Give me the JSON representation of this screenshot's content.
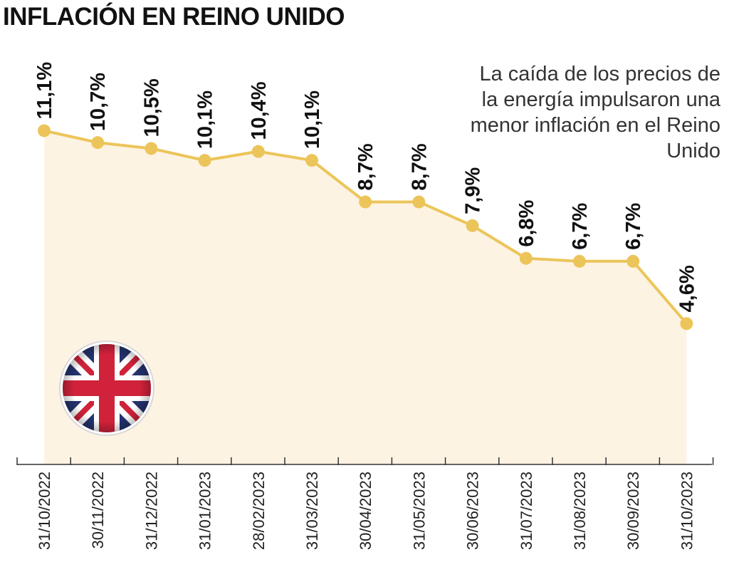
{
  "title": "INFLACIÓN EN REINO UNIDO",
  "annotation": "La caída de los precios de la energía impulsaron una menor inflación en el Reino Unido",
  "colors": {
    "line": "#ecc55a",
    "area": "#fdf3e3",
    "axis": "#333333"
  },
  "flag_icon": "united-kingdom-flag-icon",
  "chart_data": {
    "type": "area",
    "title": "INFLACIÓN EN REINO UNIDO",
    "xlabel": "",
    "ylabel": "",
    "categories": [
      "31/10/2022",
      "30/11/2022",
      "31/12/2022",
      "31/01/2023",
      "28/02/2023",
      "31/03/2023",
      "30/04/2023",
      "31/05/2023",
      "30/06/2023",
      "31/07/2023",
      "31/08/2023",
      "30/09/2023",
      "31/10/2023"
    ],
    "values": [
      11.1,
      10.7,
      10.5,
      10.1,
      10.4,
      10.1,
      8.7,
      8.7,
      7.9,
      6.8,
      6.7,
      6.7,
      4.6
    ],
    "labels": [
      "11,1%",
      "10,7%",
      "10,5%",
      "10,1%",
      "10,4%",
      "10,1%",
      "8,7%",
      "8,7%",
      "7,9%",
      "6,8%",
      "6,7%",
      "6,7%",
      "4,6%"
    ],
    "grid": false,
    "legend": "none"
  }
}
